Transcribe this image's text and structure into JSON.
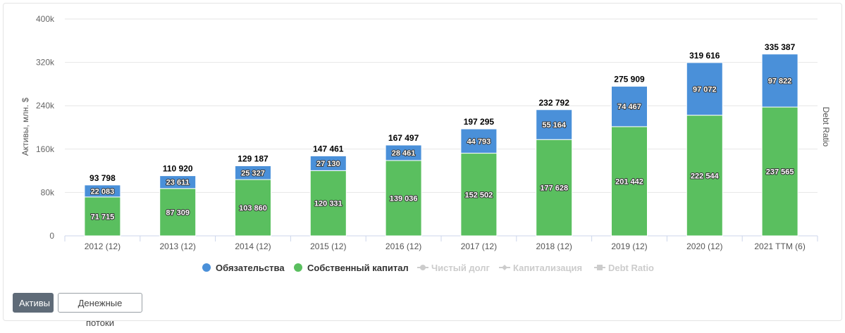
{
  "chart_data": {
    "type": "bar",
    "stacked": true,
    "categories": [
      "2012 (12)",
      "2013 (12)",
      "2014 (12)",
      "2015 (12)",
      "2016 (12)",
      "2017 (12)",
      "2018 (12)",
      "2019 (12)",
      "2020 (12)",
      "2021 TTM (6)"
    ],
    "series": [
      {
        "name": "Собственный капитал",
        "color": "#5abf5f",
        "values": [
          71715,
          87309,
          103860,
          120331,
          139036,
          152502,
          177628,
          201442,
          222544,
          237565
        ],
        "labels": [
          "71 715",
          "87 309",
          "103 860",
          "120 331",
          "139 036",
          "152 502",
          "177 628",
          "201 442",
          "222 544",
          "237 565"
        ]
      },
      {
        "name": "Обязательства",
        "color": "#4a90d9",
        "values": [
          22083,
          23611,
          25327,
          27130,
          28461,
          44793,
          55164,
          74467,
          97072,
          97822
        ],
        "labels": [
          "22 083",
          "23 611",
          "25 327",
          "27 130",
          "28 461",
          "44 793",
          "55 164",
          "74 467",
          "97 072",
          "97 822"
        ]
      }
    ],
    "totals": [
      "93 798",
      "110 920",
      "129 187",
      "147 461",
      "167 497",
      "197 295",
      "232 792",
      "275 909",
      "319 616",
      "335 387"
    ],
    "ylabel": "Активы, млн. $",
    "ylabel_right": "Debt Ratio",
    "ylim": [
      0,
      400000
    ],
    "yticks": [
      0,
      80000,
      160000,
      240000,
      320000,
      400000
    ],
    "ytick_labels": [
      "0",
      "80k",
      "160k",
      "240k",
      "320k",
      "400k"
    ],
    "grid": true,
    "legend": [
      {
        "name": "Обязательства",
        "color": "#4a90d9",
        "symbol": "circle",
        "active": true
      },
      {
        "name": "Собственный капитал",
        "color": "#5abf5f",
        "symbol": "circle",
        "active": true
      },
      {
        "name": "Чистый долг",
        "color": "#cccccc",
        "symbol": "line-circle",
        "active": false
      },
      {
        "name": "Капитализация",
        "color": "#cccccc",
        "symbol": "line-diamond",
        "active": false
      },
      {
        "name": "Debt Ratio",
        "color": "#cccccc",
        "symbol": "line-square",
        "active": false
      }
    ],
    "legend_position": "bottom-center"
  },
  "buttons": {
    "assets": "Активы",
    "cashflow": "Денежные потоки"
  }
}
